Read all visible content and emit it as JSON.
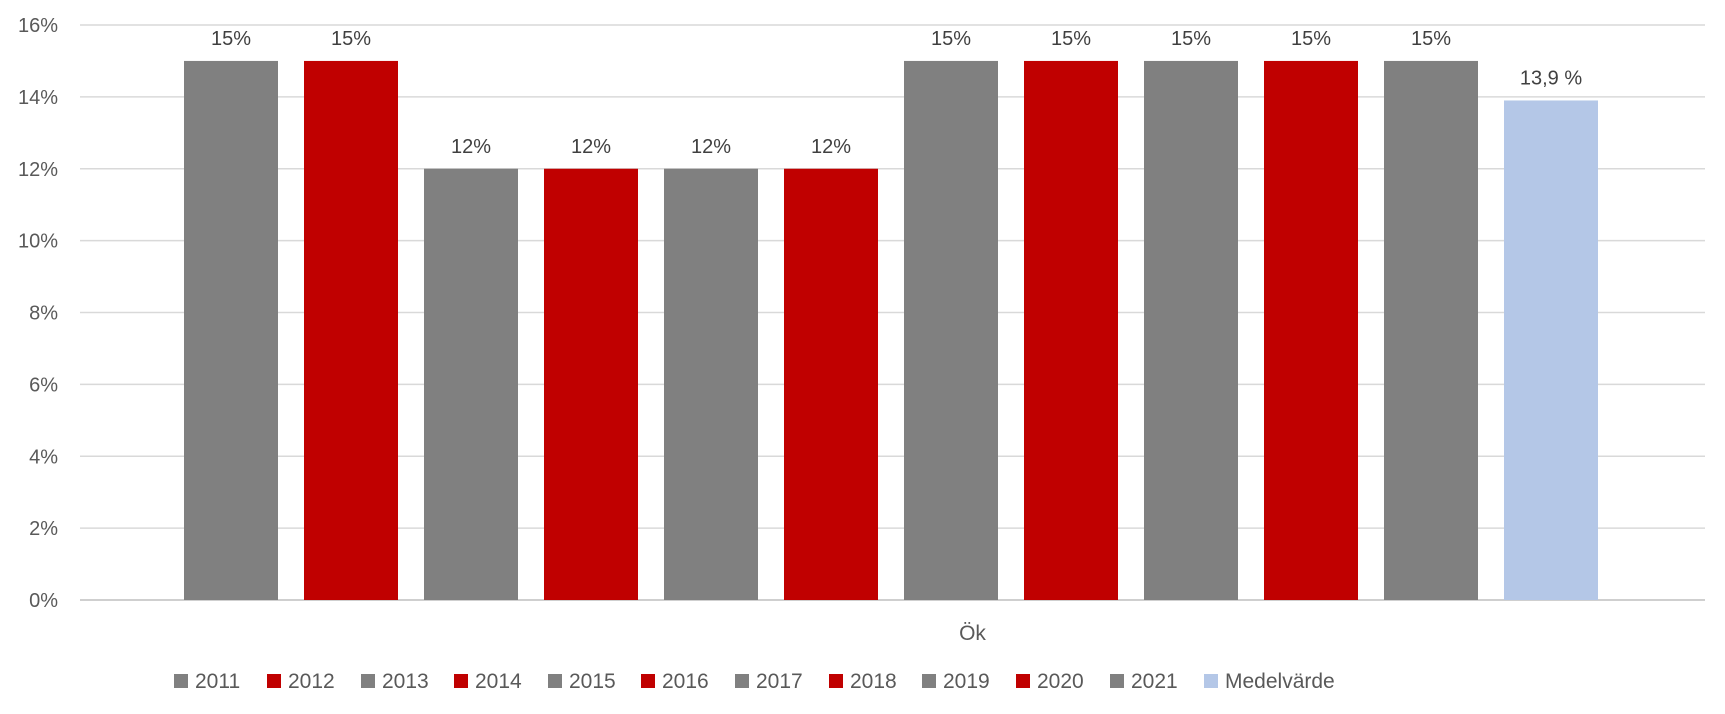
{
  "chart_data": {
    "type": "bar",
    "title": "",
    "xlabel": "",
    "ylabel": "",
    "categories": [
      "Ök"
    ],
    "ylim": [
      0,
      16
    ],
    "yticks": [
      0,
      2,
      4,
      6,
      8,
      10,
      12,
      14,
      16
    ],
    "ytick_labels": [
      "0%",
      "2%",
      "4%",
      "6%",
      "8%",
      "10%",
      "12%",
      "14%",
      "16%"
    ],
    "grid": true,
    "legend_position": "bottom",
    "series": [
      {
        "name": "2011",
        "values": [
          15
        ],
        "label": "15%",
        "color": "#808080"
      },
      {
        "name": "2012",
        "values": [
          15
        ],
        "label": "15%",
        "color": "#c00000"
      },
      {
        "name": "2013",
        "values": [
          12
        ],
        "label": "12%",
        "color": "#808080"
      },
      {
        "name": "2014",
        "values": [
          12
        ],
        "label": "12%",
        "color": "#c00000"
      },
      {
        "name": "2015",
        "values": [
          12
        ],
        "label": "12%",
        "color": "#808080"
      },
      {
        "name": "2016",
        "values": [
          12
        ],
        "label": "12%",
        "color": "#c00000"
      },
      {
        "name": "2017",
        "values": [
          15
        ],
        "label": "15%",
        "color": "#808080"
      },
      {
        "name": "2018",
        "values": [
          15
        ],
        "label": "15%",
        "color": "#c00000"
      },
      {
        "name": "2019",
        "values": [
          15
        ],
        "label": "15%",
        "color": "#808080"
      },
      {
        "name": "2020",
        "values": [
          15
        ],
        "label": "15%",
        "color": "#c00000"
      },
      {
        "name": "2021",
        "values": [
          15
        ],
        "label": "15%",
        "color": "#808080"
      },
      {
        "name": "Medelvärde",
        "values": [
          13.9
        ],
        "label": "13,9 %",
        "color": "#b4c7e7"
      }
    ]
  }
}
